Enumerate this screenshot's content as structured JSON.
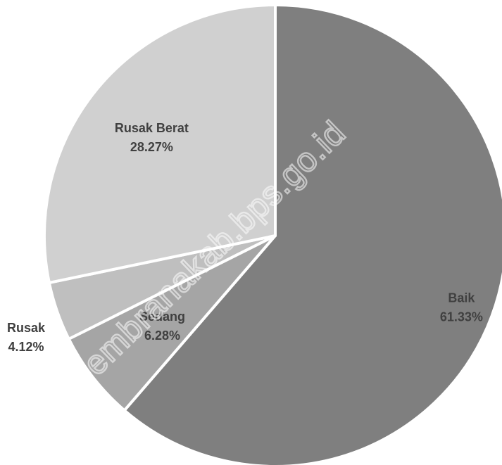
{
  "chart_data": {
    "type": "pie",
    "title": "",
    "slices": [
      {
        "label": "Baik",
        "percent_label": "61.33%",
        "value": 61.33,
        "color": "#7f7f7f"
      },
      {
        "label": "Sedang",
        "percent_label": "6.28%",
        "value": 6.28,
        "color": "#a5a5a5"
      },
      {
        "label": "Rusak",
        "percent_label": "4.12%",
        "value": 4.12,
        "color": "#bfbfbf"
      },
      {
        "label": "Rusak Berat",
        "percent_label": "28.27%",
        "value": 28.27,
        "color": "#d0d0d0"
      }
    ],
    "start_angle": "12 o'clock",
    "direction": "clockwise",
    "legend": "none",
    "label_color": "#404040"
  },
  "watermark": {
    "text": "https://jembranakab.bps.go.id"
  }
}
